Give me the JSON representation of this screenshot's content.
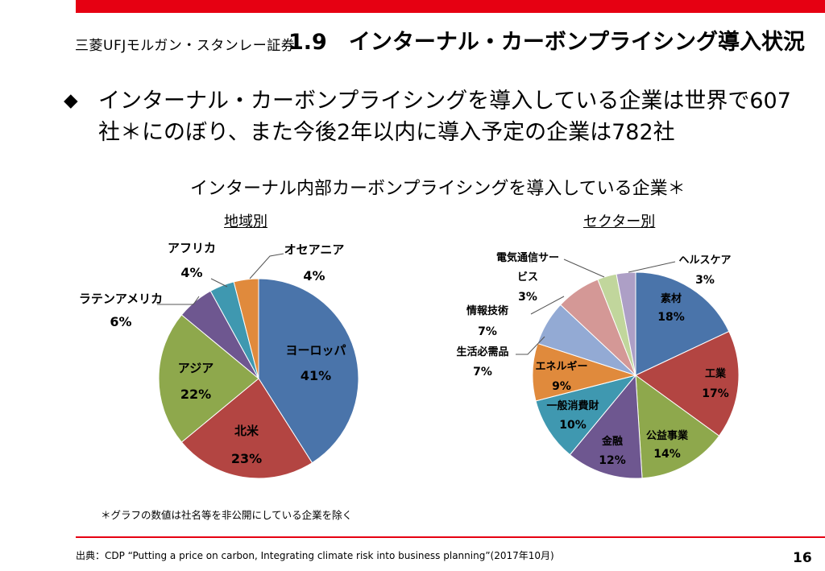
{
  "header": {
    "logo_text": "三菱UFJモルガン・スタンレー証券",
    "title": "1.9　インターナル・カーボンプライシング導入状況",
    "accent_color": "#e60012"
  },
  "bullet": {
    "icon": "diamond-bullet",
    "text": "インターナル・カーボンプライシングを導入している企業は世界で607社＊にのぼり、また今後2年以内に導入予定の企業は782社"
  },
  "chart_heading": "インターナル内部カーボンプライシングを導入している企業＊",
  "chart_data": [
    {
      "type": "pie",
      "title": "地域別",
      "slices": [
        {
          "label": "ヨーロッパ",
          "value": 41,
          "value_text": "41%",
          "color": "#4a74aa"
        },
        {
          "label": "北米",
          "value": 23,
          "value_text": "23%",
          "color": "#b34542"
        },
        {
          "label": "アジア",
          "value": 22,
          "value_text": "22%",
          "color": "#8ea84c"
        },
        {
          "label": "ラテンアメリカ",
          "value": 6,
          "value_text": "6%",
          "color": "#6e5790"
        },
        {
          "label": "アフリカ",
          "value": 4,
          "value_text": "4%",
          "color": "#3f98b0"
        },
        {
          "label": "オセアニア",
          "value": 4,
          "value_text": "4%",
          "color": "#e08a3c"
        }
      ]
    },
    {
      "type": "pie",
      "title": "セクター別",
      "slices": [
        {
          "label": "素材",
          "value": 18,
          "value_text": "18%",
          "color": "#4a74aa"
        },
        {
          "label": "工業",
          "value": 17,
          "value_text": "17%",
          "color": "#b34542"
        },
        {
          "label": "公益事業",
          "value": 14,
          "value_text": "14%",
          "color": "#8ea84c"
        },
        {
          "label": "金融",
          "value": 12,
          "value_text": "12%",
          "color": "#6e5790"
        },
        {
          "label": "一般消費財",
          "value": 10,
          "value_text": "10%",
          "color": "#3f98b0"
        },
        {
          "label": "エネルギー",
          "value": 9,
          "value_text": "9%",
          "color": "#e08a3c"
        },
        {
          "label": "生活必需品",
          "value": 7,
          "value_text": "7%",
          "color": "#93aad4"
        },
        {
          "label": "情報技術",
          "value": 7,
          "value_text": "7%",
          "color": "#d49896"
        },
        {
          "label": "電気通信サービス",
          "value": 3,
          "value_text": "3%",
          "color": "#c1d69c"
        },
        {
          "label": "ヘルスケア",
          "value": 3,
          "value_text": "3%",
          "color": "#ad9fc6"
        }
      ]
    }
  ],
  "footnote": "＊グラフの数値は社名等を非公開にしている企業を除く",
  "source": "出典：CDP “Putting a price on carbon, Integrating climate risk into business planning”(2017年10月)",
  "page_number": "16"
}
